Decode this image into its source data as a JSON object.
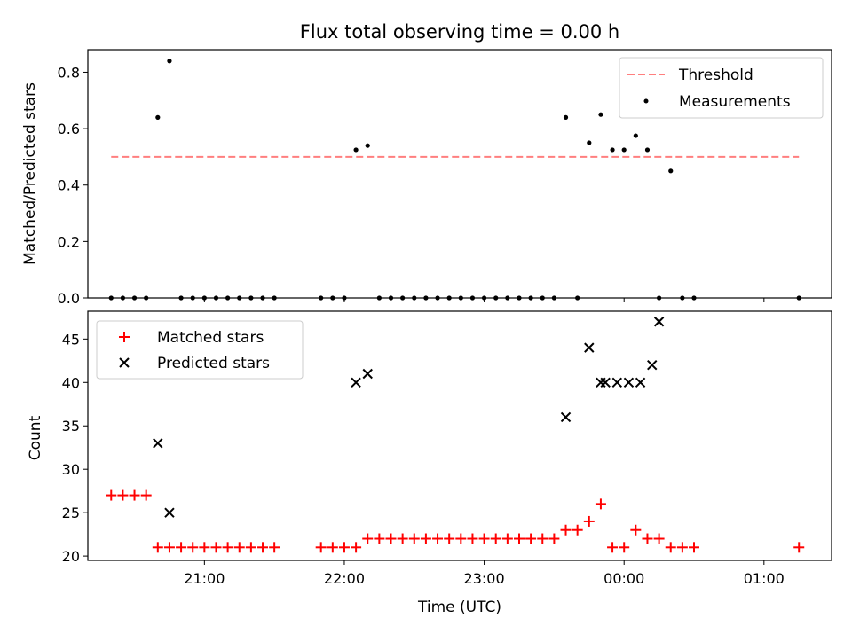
{
  "chart_data": [
    {
      "type": "scatter",
      "title": "Flux total observing time = 0.00 h",
      "xlabel": "",
      "ylabel": "Matched/Predicted stars",
      "ylim": [
        0,
        0.88
      ],
      "yticks": [
        "0.0",
        "0.2",
        "0.4",
        "0.6",
        "0.8"
      ],
      "ytick_values": [
        0,
        0.2,
        0.4,
        0.6,
        0.8
      ],
      "legend_position": "top-right",
      "threshold": {
        "name": "Threshold",
        "value": 0.5,
        "x_start": "20:20",
        "x_end": "01:15",
        "color": "#ff7f7f"
      },
      "series": [
        {
          "name": "Measurements",
          "color": "#000000",
          "x": [
            "20:20",
            "20:25",
            "20:30",
            "20:35",
            "20:40",
            "20:45",
            "20:50",
            "20:55",
            "21:00",
            "21:05",
            "21:10",
            "21:15",
            "21:20",
            "21:25",
            "21:30",
            "21:50",
            "21:55",
            "22:00",
            "22:05",
            "22:10",
            "22:15",
            "22:20",
            "22:25",
            "22:30",
            "22:35",
            "22:40",
            "22:45",
            "22:50",
            "22:55",
            "23:00",
            "23:05",
            "23:10",
            "23:15",
            "23:20",
            "23:25",
            "23:30",
            "23:35",
            "23:40",
            "23:45",
            "23:50",
            "23:55",
            "00:00",
            "00:05",
            "00:10",
            "00:15",
            "00:20",
            "00:25",
            "00:30",
            "01:15"
          ],
          "y": [
            0,
            0,
            0,
            0,
            0.64,
            0.84,
            0,
            0,
            0,
            0,
            0,
            0,
            0,
            0,
            0,
            0,
            0,
            0,
            0.525,
            0.54,
            0,
            0,
            0,
            0,
            0,
            0,
            0,
            0,
            0,
            0,
            0,
            0,
            0,
            0,
            0,
            0,
            0.64,
            0,
            0.55,
            0.65,
            0.525,
            0.525,
            0.575,
            0.525,
            0,
            0.45,
            0,
            0,
            0
          ]
        }
      ]
    },
    {
      "type": "scatter",
      "title": "",
      "xlabel": "Time (UTC)",
      "ylabel": "Count",
      "ylim": [
        19.5,
        48.2
      ],
      "yticks": [
        "20",
        "25",
        "30",
        "35",
        "40",
        "45"
      ],
      "ytick_values": [
        20,
        25,
        30,
        35,
        40,
        45
      ],
      "xlim": [
        "20:10",
        "01:29"
      ],
      "xticks": [
        "21:00",
        "22:00",
        "23:00",
        "00:00",
        "01:00"
      ],
      "legend_position": "top-left",
      "series": [
        {
          "name": "Matched stars",
          "marker": "+",
          "color": "#ff0000",
          "x": [
            "20:20",
            "20:25",
            "20:30",
            "20:35",
            "20:40",
            "20:45",
            "20:50",
            "20:55",
            "21:00",
            "21:05",
            "21:10",
            "21:15",
            "21:20",
            "21:25",
            "21:30",
            "21:50",
            "21:55",
            "22:00",
            "22:05",
            "22:10",
            "22:15",
            "22:20",
            "22:25",
            "22:30",
            "22:35",
            "22:40",
            "22:45",
            "22:50",
            "22:55",
            "23:00",
            "23:05",
            "23:10",
            "23:15",
            "23:20",
            "23:25",
            "23:30",
            "23:35",
            "23:40",
            "23:45",
            "23:50",
            "23:55",
            "00:00",
            "00:05",
            "00:10",
            "00:15",
            "00:20",
            "00:25",
            "00:30",
            "01:15"
          ],
          "y": [
            27,
            27,
            27,
            27,
            21,
            21,
            21,
            21,
            21,
            21,
            21,
            21,
            21,
            21,
            21,
            21,
            21,
            21,
            21,
            22,
            22,
            22,
            22,
            22,
            22,
            22,
            22,
            22,
            22,
            22,
            22,
            22,
            22,
            22,
            22,
            22,
            23,
            23,
            24,
            26,
            21,
            21,
            23,
            22,
            22,
            21,
            21,
            21,
            21
          ]
        },
        {
          "name": "Predicted stars",
          "marker": "x",
          "color": "#000000",
          "x": [
            "20:40",
            "20:45",
            "22:05",
            "22:10",
            "23:35",
            "23:45",
            "23:50",
            "23:52",
            "23:57",
            "00:02",
            "00:07",
            "00:12"
          ],
          "y": [
            33,
            25,
            40,
            41,
            36,
            44,
            40,
            40,
            40,
            40,
            40,
            42
          ]
        },
        {
          "name": "",
          "marker": "x",
          "color": "#000000",
          "x": [
            "00:15"
          ],
          "y": [
            47
          ]
        }
      ]
    }
  ]
}
